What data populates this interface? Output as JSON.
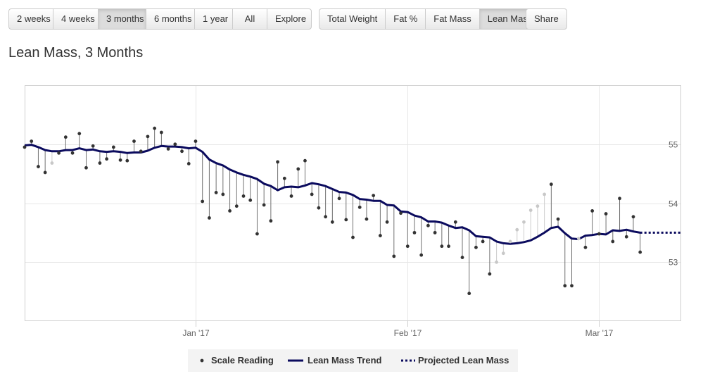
{
  "toolbar": {
    "range_buttons": [
      {
        "label": "2 weeks",
        "active": false
      },
      {
        "label": "4 weeks",
        "active": false
      },
      {
        "label": "3 months",
        "active": true
      },
      {
        "label": "6 months",
        "active": false
      },
      {
        "label": "1 year",
        "active": false
      },
      {
        "label": "All",
        "active": false
      },
      {
        "label": "Explore",
        "active": false
      }
    ],
    "metric_buttons": [
      {
        "label": "Total Weight",
        "active": false
      },
      {
        "label": "Fat %",
        "active": false
      },
      {
        "label": "Fat Mass",
        "active": false
      },
      {
        "label": "Lean Mass",
        "active": true
      }
    ],
    "share_label": "Share"
  },
  "chart_data": {
    "type": "line",
    "title": "Lean Mass, 3 Months",
    "xlabel": "",
    "ylabel": "",
    "x_ticks": [
      {
        "label": "Jan '17",
        "date": "2017-01-01"
      },
      {
        "label": "Feb '17",
        "date": "2017-02-01"
      },
      {
        "label": "Mar '17",
        "date": "2017-03-01"
      }
    ],
    "y_ticks": [
      53,
      54,
      55
    ],
    "xlim": [
      "2016-12-07",
      "2017-03-13"
    ],
    "ylim": [
      52.0,
      56.0
    ],
    "grid": true,
    "legend_position": "bottom-center",
    "colors": {
      "trend": "#0b0b5e",
      "reading": "#333333",
      "stem_dark": "#707070",
      "stem_light": "#cccccc",
      "grid": "#e6e6e6"
    },
    "series": [
      {
        "name": "Scale Reading",
        "style": "points",
        "points": [
          {
            "date": "2016-12-07",
            "y": 54.95
          },
          {
            "date": "2016-12-08",
            "y": 55.05
          },
          {
            "date": "2016-12-09",
            "y": 54.62
          },
          {
            "date": "2016-12-10",
            "y": 54.52
          },
          {
            "date": "2016-12-11",
            "y": 54.68,
            "light": true
          },
          {
            "date": "2016-12-12",
            "y": 54.85
          },
          {
            "date": "2016-12-13",
            "y": 55.12
          },
          {
            "date": "2016-12-14",
            "y": 54.85
          },
          {
            "date": "2016-12-15",
            "y": 55.18
          },
          {
            "date": "2016-12-16",
            "y": 54.6
          },
          {
            "date": "2016-12-17",
            "y": 54.97
          },
          {
            "date": "2016-12-18",
            "y": 54.68
          },
          {
            "date": "2016-12-19",
            "y": 54.75
          },
          {
            "date": "2016-12-20",
            "y": 54.95
          },
          {
            "date": "2016-12-21",
            "y": 54.73
          },
          {
            "date": "2016-12-22",
            "y": 54.72
          },
          {
            "date": "2016-12-23",
            "y": 55.05
          },
          {
            "date": "2016-12-24",
            "y": 54.88
          },
          {
            "date": "2016-12-25",
            "y": 55.13
          },
          {
            "date": "2016-12-26",
            "y": 55.27
          },
          {
            "date": "2016-12-27",
            "y": 55.2
          },
          {
            "date": "2016-12-28",
            "y": 54.92
          },
          {
            "date": "2016-12-29",
            "y": 55.0
          },
          {
            "date": "2016-12-30",
            "y": 54.88
          },
          {
            "date": "2016-12-31",
            "y": 54.67
          },
          {
            "date": "2017-01-01",
            "y": 55.05
          },
          {
            "date": "2017-01-02",
            "y": 54.03
          },
          {
            "date": "2017-01-03",
            "y": 53.75
          },
          {
            "date": "2017-01-04",
            "y": 54.18
          },
          {
            "date": "2017-01-05",
            "y": 54.15
          },
          {
            "date": "2017-01-06",
            "y": 53.87
          },
          {
            "date": "2017-01-07",
            "y": 53.95
          },
          {
            "date": "2017-01-08",
            "y": 54.12
          },
          {
            "date": "2017-01-09",
            "y": 54.05
          },
          {
            "date": "2017-01-10",
            "y": 53.48
          },
          {
            "date": "2017-01-11",
            "y": 53.97
          },
          {
            "date": "2017-01-12",
            "y": 53.7
          },
          {
            "date": "2017-01-13",
            "y": 54.7
          },
          {
            "date": "2017-01-14",
            "y": 54.42
          },
          {
            "date": "2017-01-15",
            "y": 54.12
          },
          {
            "date": "2017-01-16",
            "y": 54.58
          },
          {
            "date": "2017-01-17",
            "y": 54.72
          },
          {
            "date": "2017-01-18",
            "y": 54.15
          },
          {
            "date": "2017-01-19",
            "y": 53.92
          },
          {
            "date": "2017-01-20",
            "y": 53.77
          },
          {
            "date": "2017-01-21",
            "y": 53.68
          },
          {
            "date": "2017-01-22",
            "y": 54.08
          },
          {
            "date": "2017-01-23",
            "y": 53.72
          },
          {
            "date": "2017-01-24",
            "y": 53.42
          },
          {
            "date": "2017-01-25",
            "y": 53.93
          },
          {
            "date": "2017-01-26",
            "y": 53.73
          },
          {
            "date": "2017-01-27",
            "y": 54.13
          },
          {
            "date": "2017-01-28",
            "y": 53.45
          },
          {
            "date": "2017-01-29",
            "y": 53.68
          },
          {
            "date": "2017-01-30",
            "y": 53.1
          },
          {
            "date": "2017-01-31",
            "y": 53.83
          },
          {
            "date": "2017-02-01",
            "y": 53.27
          },
          {
            "date": "2017-02-02",
            "y": 53.5
          },
          {
            "date": "2017-02-03",
            "y": 53.12
          },
          {
            "date": "2017-02-04",
            "y": 53.62
          },
          {
            "date": "2017-02-05",
            "y": 53.5
          },
          {
            "date": "2017-02-06",
            "y": 53.27
          },
          {
            "date": "2017-02-07",
            "y": 53.27
          },
          {
            "date": "2017-02-08",
            "y": 53.68
          },
          {
            "date": "2017-02-09",
            "y": 53.08
          },
          {
            "date": "2017-02-10",
            "y": 52.47
          },
          {
            "date": "2017-02-11",
            "y": 53.25
          },
          {
            "date": "2017-02-12",
            "y": 53.35
          },
          {
            "date": "2017-02-13",
            "y": 52.8
          },
          {
            "date": "2017-02-14",
            "y": 53.0,
            "light": true
          },
          {
            "date": "2017-02-15",
            "y": 53.15,
            "light": true
          },
          {
            "date": "2017-02-16",
            "y": 53.35,
            "light": true
          },
          {
            "date": "2017-02-17",
            "y": 53.55,
            "light": true
          },
          {
            "date": "2017-02-18",
            "y": 53.68,
            "light": true
          },
          {
            "date": "2017-02-19",
            "y": 53.88,
            "light": true
          },
          {
            "date": "2017-02-20",
            "y": 53.95,
            "light": true
          },
          {
            "date": "2017-02-21",
            "y": 54.15,
            "light": true
          },
          {
            "date": "2017-02-22",
            "y": 54.32
          },
          {
            "date": "2017-02-23",
            "y": 53.73
          },
          {
            "date": "2017-02-24",
            "y": 52.6
          },
          {
            "date": "2017-02-25",
            "y": 52.6
          },
          {
            "date": "2017-02-26",
            "y": 53.4,
            "light": true
          },
          {
            "date": "2017-02-27",
            "y": 53.25
          },
          {
            "date": "2017-02-28",
            "y": 53.87
          },
          {
            "date": "2017-03-01",
            "y": 53.48
          },
          {
            "date": "2017-03-02",
            "y": 53.82
          },
          {
            "date": "2017-03-03",
            "y": 53.35
          },
          {
            "date": "2017-03-04",
            "y": 54.08
          },
          {
            "date": "2017-03-05",
            "y": 53.43
          },
          {
            "date": "2017-03-06",
            "y": 53.77
          },
          {
            "date": "2017-03-07",
            "y": 53.17
          }
        ]
      },
      {
        "name": "Lean Mass Trend",
        "style": "solid",
        "points": [
          {
            "date": "2016-12-07",
            "y": 54.98
          },
          {
            "date": "2016-12-08",
            "y": 54.99
          },
          {
            "date": "2016-12-09",
            "y": 54.95
          },
          {
            "date": "2016-12-10",
            "y": 54.9
          },
          {
            "date": "2016-12-11",
            "y": 54.88
          },
          {
            "date": "2016-12-12",
            "y": 54.88
          },
          {
            "date": "2016-12-13",
            "y": 54.9
          },
          {
            "date": "2016-12-14",
            "y": 54.9
          },
          {
            "date": "2016-12-15",
            "y": 54.93
          },
          {
            "date": "2016-12-16",
            "y": 54.9
          },
          {
            "date": "2016-12-17",
            "y": 54.91
          },
          {
            "date": "2016-12-18",
            "y": 54.88
          },
          {
            "date": "2016-12-19",
            "y": 54.87
          },
          {
            "date": "2016-12-20",
            "y": 54.88
          },
          {
            "date": "2016-12-21",
            "y": 54.87
          },
          {
            "date": "2016-12-22",
            "y": 54.85
          },
          {
            "date": "2016-12-23",
            "y": 54.86
          },
          {
            "date": "2016-12-24",
            "y": 54.86
          },
          {
            "date": "2016-12-25",
            "y": 54.89
          },
          {
            "date": "2016-12-26",
            "y": 54.94
          },
          {
            "date": "2016-12-27",
            "y": 54.97
          },
          {
            "date": "2016-12-28",
            "y": 54.96
          },
          {
            "date": "2016-12-29",
            "y": 54.96
          },
          {
            "date": "2016-12-30",
            "y": 54.95
          },
          {
            "date": "2016-12-31",
            "y": 54.93
          },
          {
            "date": "2017-01-01",
            "y": 54.94
          },
          {
            "date": "2017-01-02",
            "y": 54.87
          },
          {
            "date": "2017-01-03",
            "y": 54.74
          },
          {
            "date": "2017-01-04",
            "y": 54.68
          },
          {
            "date": "2017-01-05",
            "y": 54.64
          },
          {
            "date": "2017-01-06",
            "y": 54.57
          },
          {
            "date": "2017-01-07",
            "y": 54.52
          },
          {
            "date": "2017-01-08",
            "y": 54.48
          },
          {
            "date": "2017-01-09",
            "y": 54.45
          },
          {
            "date": "2017-01-10",
            "y": 54.41
          },
          {
            "date": "2017-01-11",
            "y": 54.33
          },
          {
            "date": "2017-01-12",
            "y": 54.29
          },
          {
            "date": "2017-01-13",
            "y": 54.22
          },
          {
            "date": "2017-01-14",
            "y": 54.27
          },
          {
            "date": "2017-01-15",
            "y": 54.28
          },
          {
            "date": "2017-01-16",
            "y": 54.27
          },
          {
            "date": "2017-01-17",
            "y": 54.3
          },
          {
            "date": "2017-01-18",
            "y": 54.34
          },
          {
            "date": "2017-01-19",
            "y": 54.32
          },
          {
            "date": "2017-01-20",
            "y": 54.29
          },
          {
            "date": "2017-01-21",
            "y": 54.24
          },
          {
            "date": "2017-01-22",
            "y": 54.19
          },
          {
            "date": "2017-01-23",
            "y": 54.18
          },
          {
            "date": "2017-01-24",
            "y": 54.14
          },
          {
            "date": "2017-01-25",
            "y": 54.07
          },
          {
            "date": "2017-01-26",
            "y": 54.06
          },
          {
            "date": "2017-01-27",
            "y": 54.04
          },
          {
            "date": "2017-01-28",
            "y": 54.04
          },
          {
            "date": "2017-01-29",
            "y": 53.97
          },
          {
            "date": "2017-01-30",
            "y": 53.96
          },
          {
            "date": "2017-01-31",
            "y": 53.86
          },
          {
            "date": "2017-02-01",
            "y": 53.85
          },
          {
            "date": "2017-02-02",
            "y": 53.79
          },
          {
            "date": "2017-02-03",
            "y": 53.76
          },
          {
            "date": "2017-02-04",
            "y": 53.69
          },
          {
            "date": "2017-02-05",
            "y": 53.69
          },
          {
            "date": "2017-02-06",
            "y": 53.67
          },
          {
            "date": "2017-02-07",
            "y": 53.62
          },
          {
            "date": "2017-02-08",
            "y": 53.58
          },
          {
            "date": "2017-02-09",
            "y": 53.59
          },
          {
            "date": "2017-02-10",
            "y": 53.54
          },
          {
            "date": "2017-02-11",
            "y": 53.44
          },
          {
            "date": "2017-02-12",
            "y": 53.43
          },
          {
            "date": "2017-02-13",
            "y": 53.42
          },
          {
            "date": "2017-02-14",
            "y": 53.35
          },
          {
            "date": "2017-02-15",
            "y": 53.32
          },
          {
            "date": "2017-02-16",
            "y": 53.31
          },
          {
            "date": "2017-02-17",
            "y": 53.32
          },
          {
            "date": "2017-02-18",
            "y": 53.34
          },
          {
            "date": "2017-02-19",
            "y": 53.37
          },
          {
            "date": "2017-02-20",
            "y": 53.43
          },
          {
            "date": "2017-02-21",
            "y": 53.5
          },
          {
            "date": "2017-02-22",
            "y": 53.58
          },
          {
            "date": "2017-02-23",
            "y": 53.6
          },
          {
            "date": "2017-02-24",
            "y": 53.49
          },
          {
            "date": "2017-02-25",
            "y": 53.4
          },
          {
            "date": "2017-02-26",
            "y": 53.39
          },
          {
            "date": "2017-02-27",
            "y": 53.45
          },
          {
            "date": "2017-02-28",
            "y": 53.46
          },
          {
            "date": "2017-03-01",
            "y": 53.48
          },
          {
            "date": "2017-03-02",
            "y": 53.47
          },
          {
            "date": "2017-03-03",
            "y": 53.54
          },
          {
            "date": "2017-03-04",
            "y": 53.53
          },
          {
            "date": "2017-03-05",
            "y": 53.55
          },
          {
            "date": "2017-03-06",
            "y": 53.52
          },
          {
            "date": "2017-03-07",
            "y": 53.5
          }
        ]
      },
      {
        "name": "Projected Lean Mass",
        "style": "dotted",
        "points": [
          {
            "date": "2017-03-07",
            "y": 53.5
          },
          {
            "date": "2017-03-13",
            "y": 53.5
          }
        ]
      }
    ]
  }
}
